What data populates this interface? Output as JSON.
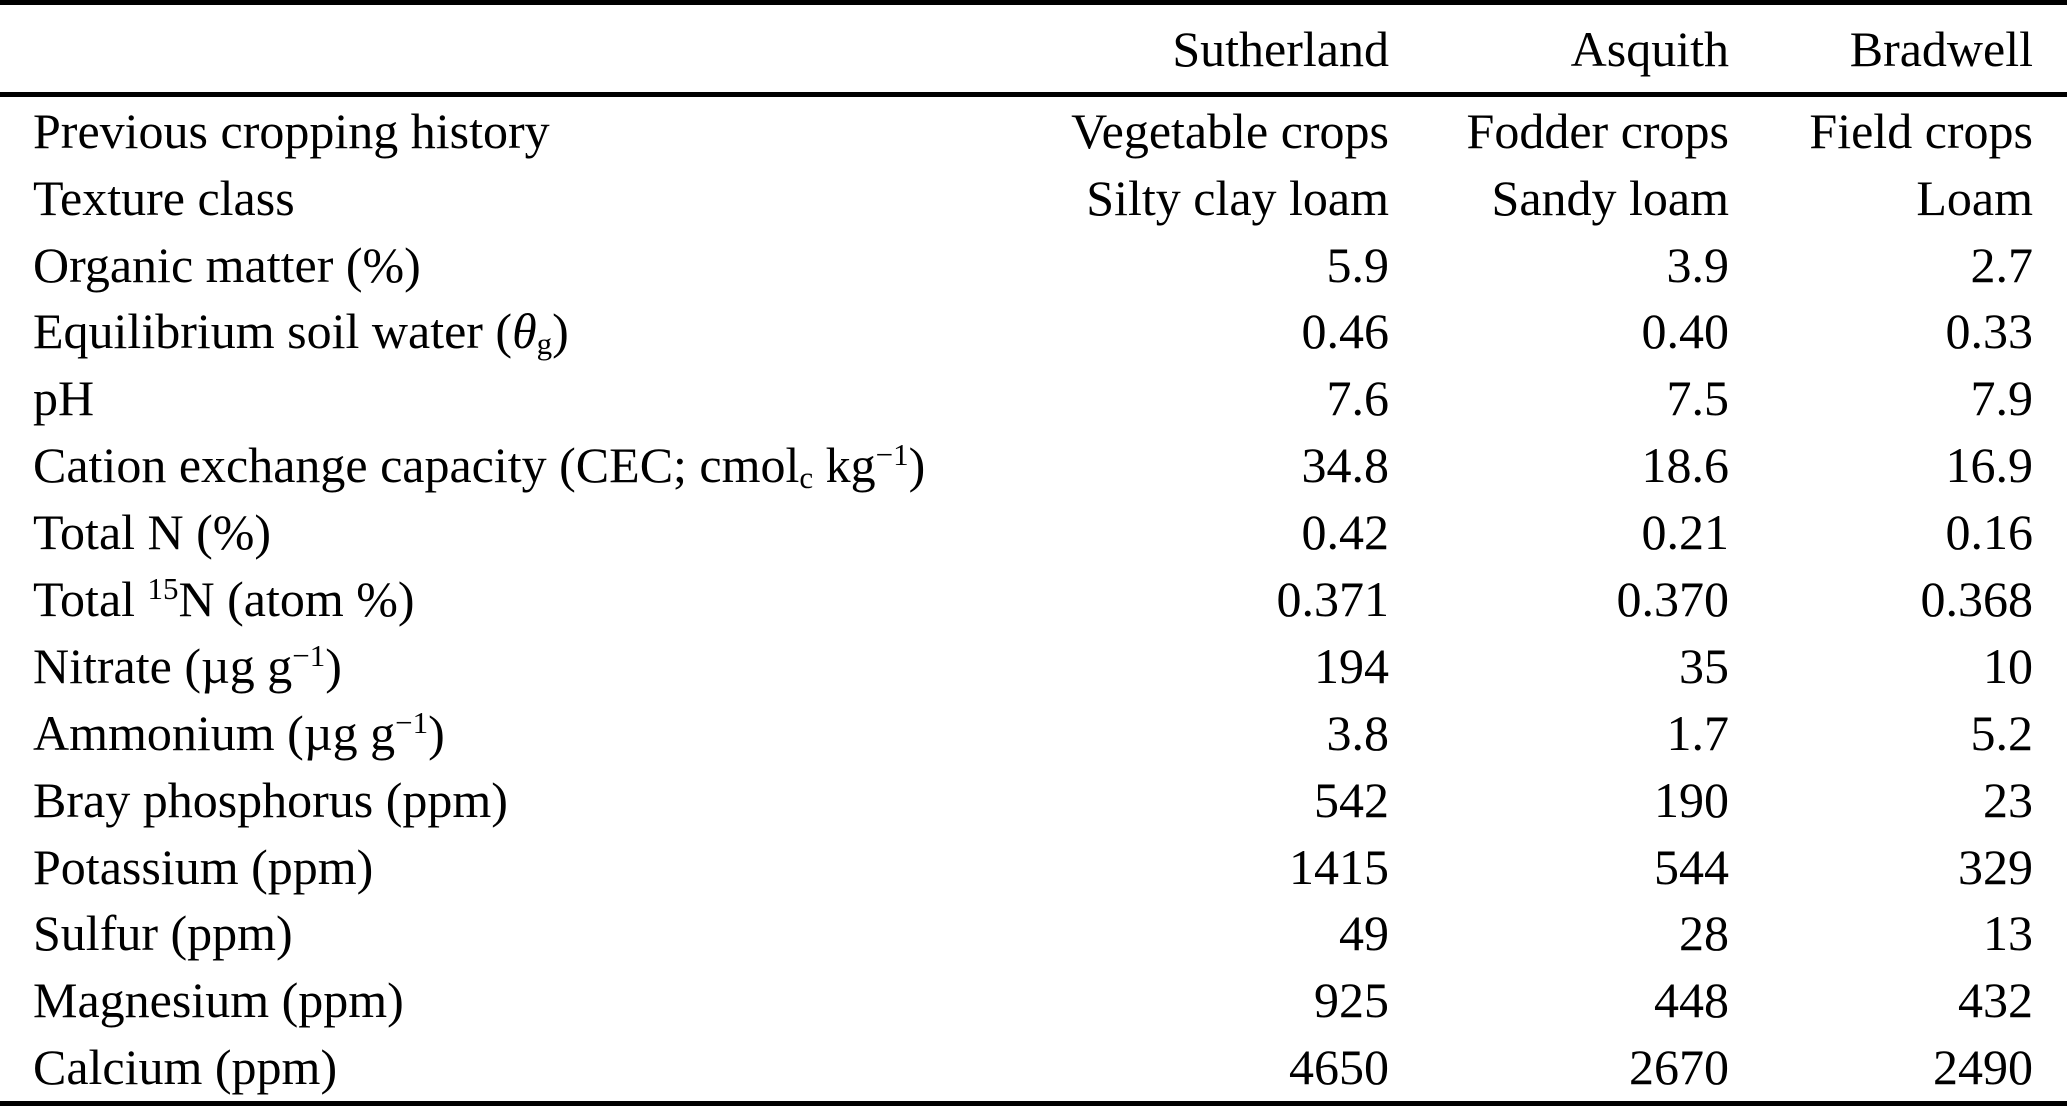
{
  "table": {
    "columns": [
      "",
      "Sutherland",
      "Asquith",
      "Bradwell"
    ],
    "rows": [
      {
        "label": [
          [
            "n",
            "Previous cropping history"
          ]
        ],
        "values": [
          "Vegetable crops",
          "Fodder crops",
          "Field crops"
        ]
      },
      {
        "label": [
          [
            "n",
            "Texture class"
          ]
        ],
        "values": [
          "Silty clay loam",
          "Sandy loam",
          "Loam"
        ]
      },
      {
        "label": [
          [
            "n",
            "Organic matter (%)"
          ]
        ],
        "values": [
          "5.9",
          "3.9",
          "2.7"
        ]
      },
      {
        "label": [
          [
            "n",
            "Equilibrium soil water ("
          ],
          [
            "i",
            "θ"
          ],
          [
            "sub",
            "g"
          ],
          [
            "n",
            ")"
          ]
        ],
        "values": [
          "0.46",
          "0.40",
          "0.33"
        ]
      },
      {
        "label": [
          [
            "n",
            "pH"
          ]
        ],
        "values": [
          "7.6",
          "7.5",
          "7.9"
        ]
      },
      {
        "label": [
          [
            "n",
            "Cation exchange capacity (CEC; cmol"
          ],
          [
            "sub",
            "c"
          ],
          [
            "n",
            " kg"
          ],
          [
            "sup",
            "−1"
          ],
          [
            "n",
            ")"
          ]
        ],
        "values": [
          "34.8",
          "18.6",
          "16.9"
        ]
      },
      {
        "label": [
          [
            "n",
            "Total N (%)"
          ]
        ],
        "values": [
          "0.42",
          "0.21",
          "0.16"
        ]
      },
      {
        "label": [
          [
            "n",
            "Total "
          ],
          [
            "sup",
            "15"
          ],
          [
            "n",
            "N (atom %)"
          ]
        ],
        "values": [
          "0.371",
          "0.370",
          "0.368"
        ]
      },
      {
        "label": [
          [
            "n",
            "Nitrate (µg g"
          ],
          [
            "sup",
            "−1"
          ],
          [
            "n",
            ")"
          ]
        ],
        "values": [
          "194",
          "35",
          "10"
        ]
      },
      {
        "label": [
          [
            "n",
            "Ammonium (µg g"
          ],
          [
            "sup",
            "−1"
          ],
          [
            "n",
            ")"
          ]
        ],
        "values": [
          "3.8",
          "1.7",
          "5.2"
        ]
      },
      {
        "label": [
          [
            "n",
            "Bray phosphorus (ppm)"
          ]
        ],
        "values": [
          "542",
          "190",
          "23"
        ]
      },
      {
        "label": [
          [
            "n",
            "Potassium (ppm)"
          ]
        ],
        "values": [
          "1415",
          "544",
          "329"
        ]
      },
      {
        "label": [
          [
            "n",
            "Sulfur (ppm)"
          ]
        ],
        "values": [
          "49",
          "28",
          "13"
        ]
      },
      {
        "label": [
          [
            "n",
            "Magnesium (ppm)"
          ]
        ],
        "values": [
          "925",
          "448",
          "432"
        ]
      },
      {
        "label": [
          [
            "n",
            "Calcium (ppm)"
          ]
        ],
        "values": [
          "4650",
          "2670",
          "2490"
        ]
      }
    ]
  }
}
